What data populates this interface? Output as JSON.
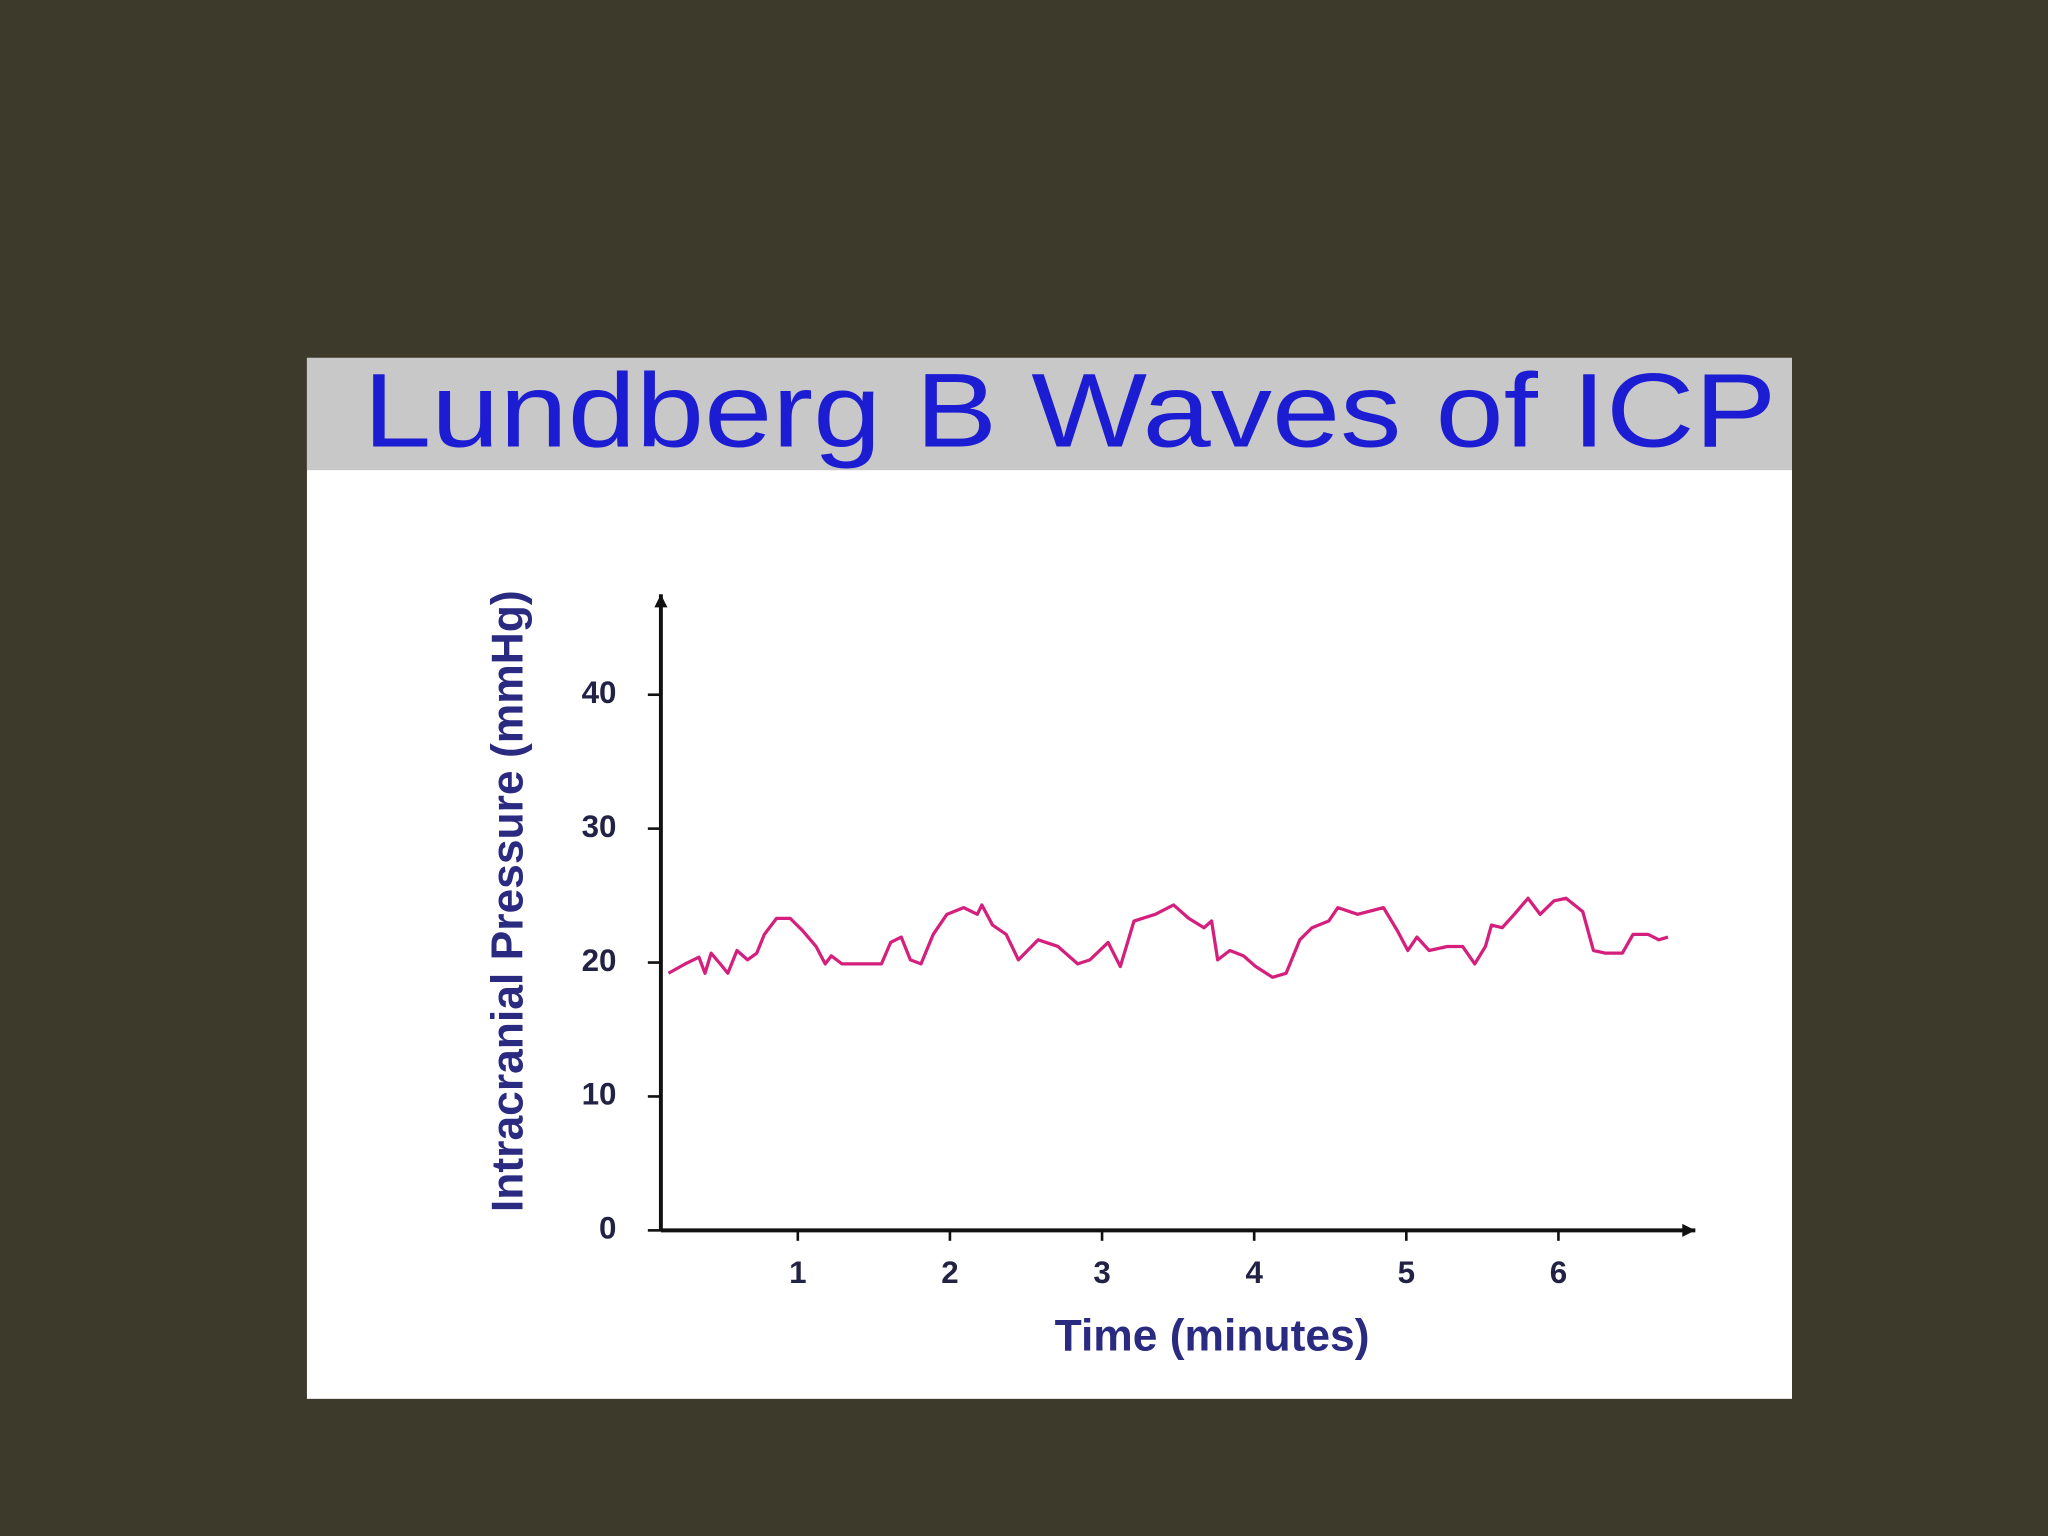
{
  "chart_data": {
    "type": "line",
    "title": "Lundberg B Waves of ICP",
    "x_label": "Time (minutes)",
    "y_label": "Intracranial Pressure (mmHg)",
    "xlim": [
      0.1,
      6.9
    ],
    "xticks": [
      1,
      2,
      3,
      4,
      5,
      6
    ],
    "ylim": [
      0,
      47.5
    ],
    "yticks": [
      0,
      10,
      20,
      30,
      40
    ],
    "color": "#d4207c",
    "x": [
      0.15,
      0.26,
      0.35,
      0.39,
      0.43,
      0.49,
      0.54,
      0.6,
      0.67,
      0.73,
      0.78,
      0.86,
      0.95,
      1.03,
      1.12,
      1.18,
      1.22,
      1.29,
      1.55,
      1.61,
      1.68,
      1.74,
      1.81,
      1.89,
      1.98,
      2.09,
      2.18,
      2.21,
      2.28,
      2.37,
      2.45,
      2.58,
      2.71,
      2.84,
      2.92,
      3.04,
      3.12,
      3.21,
      3.35,
      3.47,
      3.57,
      3.67,
      3.72,
      3.76,
      3.84,
      3.93,
      4.01,
      4.12,
      4.21,
      4.3,
      4.38,
      4.49,
      4.55,
      4.68,
      4.85,
      4.94,
      5.01,
      5.07,
      5.15,
      5.27,
      5.37,
      5.45,
      5.52,
      5.56,
      5.63,
      5.71,
      5.8,
      5.88,
      5.97,
      6.05,
      6.16,
      6.23,
      6.31,
      6.42,
      6.49,
      6.59,
      6.66,
      6.72
    ],
    "values": [
      19.2,
      19.9,
      20.4,
      19.2,
      20.7,
      19.9,
      19.2,
      20.9,
      20.2,
      20.7,
      22.1,
      23.3,
      23.3,
      22.4,
      21.2,
      19.9,
      20.5,
      19.9,
      19.9,
      21.5,
      21.9,
      20.2,
      19.9,
      22.1,
      23.6,
      24.1,
      23.6,
      24.3,
      22.8,
      22.1,
      20.2,
      21.7,
      21.2,
      19.9,
      20.2,
      21.5,
      19.7,
      23.1,
      23.6,
      24.3,
      23.3,
      22.6,
      23.1,
      20.2,
      20.9,
      20.5,
      19.7,
      18.9,
      19.2,
      21.7,
      22.6,
      23.1,
      24.1,
      23.6,
      24.1,
      22.4,
      20.9,
      21.9,
      20.9,
      21.2,
      21.2,
      19.9,
      21.2,
      22.8,
      22.6,
      23.6,
      24.8,
      23.6,
      24.6,
      24.8,
      23.8,
      20.9,
      20.7,
      20.7,
      22.1,
      22.1,
      21.7,
      21.9
    ]
  }
}
